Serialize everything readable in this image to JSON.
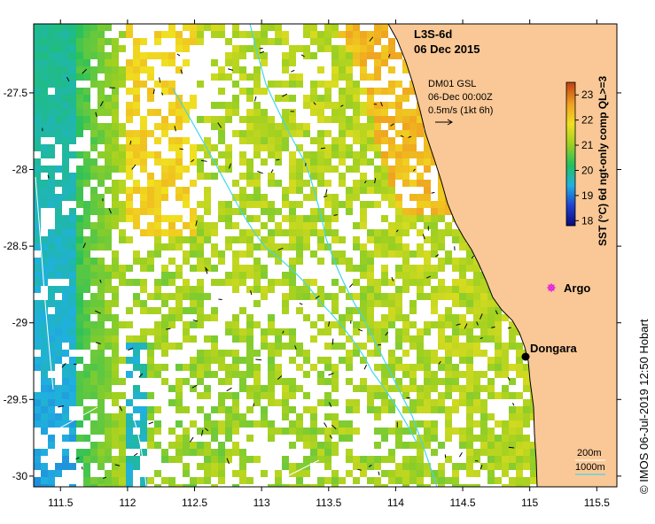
{
  "title": {
    "line1": "L3S-6d",
    "line2": "06 Dec 2015"
  },
  "current_info": {
    "line1": "DM01 GSL",
    "line2": "06-Dec 00:00Z",
    "line3": "0.5m/s (1kt 6h)"
  },
  "axes": {
    "x_ticks": [
      "111.5",
      "112",
      "112.5",
      "113",
      "113.5",
      "114",
      "114.5",
      "115",
      "115.5"
    ],
    "x_values": [
      111.5,
      112,
      112.5,
      113,
      113.5,
      114,
      114.5,
      115,
      115.5
    ],
    "y_ticks": [
      "-27.5",
      "-28",
      "-28.5",
      "-29",
      "-29.5",
      "-30"
    ],
    "y_values": [
      -27.5,
      -28,
      -28.5,
      -29,
      -29.5,
      -30
    ],
    "x_range": [
      111.3,
      115.65
    ],
    "y_range": [
      -30.07,
      -27.05
    ]
  },
  "colorbar": {
    "title": "SST (°C) 6d ngt-only comp QL>=3",
    "labels": [
      "18",
      "19",
      "20",
      "21",
      "22",
      "23"
    ],
    "values": [
      18,
      19,
      20,
      21,
      22,
      23
    ],
    "range": [
      17.8,
      23.5
    ],
    "stops": [
      "#0a0a78",
      "#1e40d0",
      "#20b0e0",
      "#20c060",
      "#a0d020",
      "#f0e020",
      "#f0a020",
      "#c04010"
    ]
  },
  "places": [
    {
      "name": "Dongara",
      "lon": 114.93,
      "lat": -29.25,
      "marker": "black-dot"
    },
    {
      "name": "Argo",
      "lon": 115.12,
      "lat": -28.84,
      "marker": "magenta-star"
    }
  ],
  "legend": {
    "depth1": "200m",
    "depth2": "1000m"
  },
  "credit": "© IMOS 06-Jul-2019 12:50 Hobart",
  "colors": {
    "land": "#fac896",
    "coast": "#000000",
    "isobath_200": "#ffffff",
    "isobath_1000": "#40d8e8",
    "argo": "#e020e0"
  }
}
